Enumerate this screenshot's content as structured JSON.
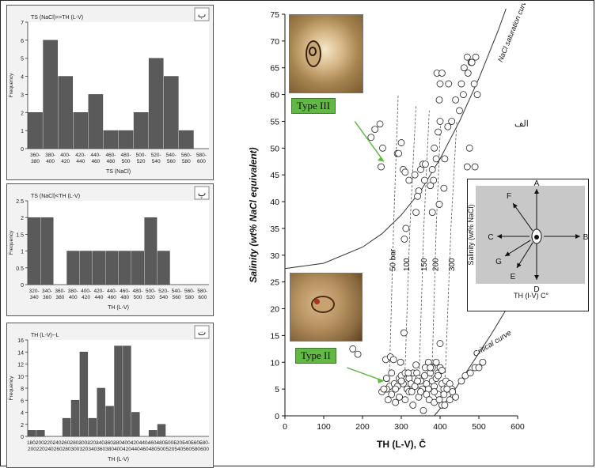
{
  "chart_data": [
    {
      "id": "hist-top",
      "type": "bar",
      "corner_label": "ب",
      "title": "TS (NaCl)>>TH (L-V)",
      "xlabel": "TS (NaCl)",
      "ylabel": "Frequency",
      "ylim": [
        0,
        7
      ],
      "yticks": [
        0,
        1,
        2,
        3,
        4,
        5,
        6,
        7
      ],
      "categories": [
        "360-380",
        "380-400",
        "400-420",
        "420-440",
        "440-460",
        "460-480",
        "480-500",
        "500-520",
        "520-540",
        "540-560",
        "560-580",
        "580-600"
      ],
      "values": [
        2,
        6,
        4,
        2,
        3,
        1,
        1,
        2,
        5,
        4,
        1,
        0
      ]
    },
    {
      "id": "hist-mid",
      "type": "bar",
      "corner_label": "پ",
      "title": "TS (NaCl)<TH (L-V)",
      "xlabel": "TH (L-V)",
      "ylabel": "Frequency",
      "ylim": [
        0,
        2.5
      ],
      "yticks": [
        0,
        0.5,
        1,
        1.5,
        2,
        2.5
      ],
      "categories": [
        "320-340",
        "340-360",
        "360-380",
        "380-400",
        "400-420",
        "420-440",
        "440-460",
        "460-480",
        "480-500",
        "500-520",
        "520-540",
        "540-560",
        "560-580",
        "580-600"
      ],
      "values": [
        2,
        2,
        0,
        1,
        1,
        1,
        1,
        1,
        1,
        2,
        1,
        0,
        0,
        0
      ]
    },
    {
      "id": "hist-bot",
      "type": "bar",
      "corner_label": "ت",
      "title": "TH (L-V)--L",
      "xlabel": "TH (L-V)",
      "ylabel": "Frequency",
      "ylim": [
        0,
        16
      ],
      "yticks": [
        0,
        2,
        4,
        6,
        8,
        10,
        12,
        14,
        16
      ],
      "categories": [
        "180-200",
        "200-220",
        "220-240",
        "240-260",
        "260-280",
        "280-300",
        "300-320",
        "320-340",
        "340-360",
        "360-380",
        "380-400",
        "400-420",
        "420-440",
        "440-460",
        "460-480",
        "480-500",
        "500-520",
        "520-540",
        "540-560",
        "560-580",
        "580-600"
      ],
      "values": [
        1,
        1,
        0,
        0,
        3,
        6,
        14,
        3,
        8,
        5,
        15,
        15,
        4,
        0,
        1,
        2,
        0,
        0,
        0,
        0,
        0
      ]
    },
    {
      "id": "scatter-main",
      "type": "scatter",
      "corner_label": "الف",
      "xlabel": "TH (L-V), Č",
      "ylabel": "Salinity (wt% NaCl equivalent)",
      "xlim": [
        0,
        600
      ],
      "ylim": [
        0,
        75
      ],
      "xticks": [
        0,
        100,
        200,
        300,
        400,
        500,
        600
      ],
      "yticks": [
        0,
        5,
        10,
        15,
        20,
        25,
        30,
        35,
        40,
        45,
        50,
        55,
        60,
        65,
        70,
        75
      ],
      "curve_labels": {
        "saturation": "NaCl saturation curve",
        "critical": "Critical curve"
      },
      "pressure_labels": [
        "50 bar",
        "100",
        "150",
        "200",
        "300"
      ],
      "type_labels": {
        "type3": "Type III",
        "type2": "Type II"
      },
      "saturation_curve": [
        [
          0,
          27.5
        ],
        [
          100,
          28.5
        ],
        [
          200,
          31.5
        ],
        [
          250,
          34
        ],
        [
          300,
          37.5
        ],
        [
          350,
          42
        ],
        [
          400,
          48
        ],
        [
          450,
          55
        ],
        [
          500,
          63
        ],
        [
          550,
          72
        ],
        [
          570,
          76
        ]
      ],
      "critical_curve": [
        [
          385,
          0
        ],
        [
          430,
          4
        ],
        [
          480,
          9.5
        ],
        [
          530,
          15
        ],
        [
          580,
          21
        ],
        [
          610,
          24.5
        ]
      ],
      "isobars": [
        [
          [
            268,
            4
          ],
          [
            280,
            35
          ],
          [
            292,
            60
          ]
        ],
        [
          [
            308,
            5
          ],
          [
            322,
            35
          ],
          [
            338,
            58
          ]
        ],
        [
          [
            345,
            5
          ],
          [
            358,
            35
          ],
          [
            372,
            57
          ]
        ],
        [
          [
            378,
            5
          ],
          [
            390,
            35
          ],
          [
            402,
            56
          ]
        ],
        [
          [
            412,
            5
          ],
          [
            428,
            35
          ],
          [
            443,
            55
          ]
        ]
      ],
      "points": [
        [
          222,
          52
        ],
        [
          232,
          53.5
        ],
        [
          245,
          54.5
        ],
        [
          252,
          50
        ],
        [
          248,
          46.5
        ],
        [
          290,
          49
        ],
        [
          293,
          49
        ],
        [
          300,
          51
        ],
        [
          305,
          46
        ],
        [
          310,
          45.5
        ],
        [
          320,
          44
        ],
        [
          335,
          45
        ],
        [
          345,
          42
        ],
        [
          350,
          46
        ],
        [
          356,
          47
        ],
        [
          362,
          47
        ],
        [
          308,
          33
        ],
        [
          312,
          35
        ],
        [
          338,
          38
        ],
        [
          342,
          41
        ],
        [
          360,
          44
        ],
        [
          375,
          43
        ],
        [
          380,
          46
        ],
        [
          383,
          44
        ],
        [
          385,
          50
        ],
        [
          390,
          48
        ],
        [
          395,
          53
        ],
        [
          400,
          55
        ],
        [
          398,
          59
        ],
        [
          410,
          42.5
        ],
        [
          412,
          48
        ],
        [
          420,
          54
        ],
        [
          422,
          62
        ],
        [
          430,
          55
        ],
        [
          440,
          59
        ],
        [
          450,
          57
        ],
        [
          455,
          62
        ],
        [
          460,
          60
        ],
        [
          462,
          65
        ],
        [
          470,
          67
        ],
        [
          472,
          64
        ],
        [
          480,
          66
        ],
        [
          482,
          66
        ],
        [
          488,
          62
        ],
        [
          492,
          67
        ],
        [
          496,
          60
        ],
        [
          476,
          50
        ],
        [
          470,
          46.5
        ],
        [
          490,
          46.5
        ],
        [
          398,
          39.5
        ],
        [
          380,
          38
        ],
        [
          400,
          62
        ],
        [
          392,
          64
        ],
        [
          405,
          64
        ],
        [
          175,
          12.5
        ],
        [
          188,
          11.5
        ],
        [
          260,
          10.5
        ],
        [
          272,
          11
        ],
        [
          280,
          10.5
        ],
        [
          262,
          7
        ],
        [
          270,
          5.5
        ],
        [
          275,
          8
        ],
        [
          282,
          6
        ],
        [
          290,
          5.5
        ],
        [
          295,
          7
        ],
        [
          300,
          7.5
        ],
        [
          305,
          6
        ],
        [
          310,
          8
        ],
        [
          315,
          5
        ],
        [
          320,
          7
        ],
        [
          325,
          6
        ],
        [
          330,
          8
        ],
        [
          335,
          5.5
        ],
        [
          340,
          8
        ],
        [
          345,
          7
        ],
        [
          350,
          6.5
        ],
        [
          355,
          5
        ],
        [
          360,
          7.5
        ],
        [
          365,
          6
        ],
        [
          370,
          5
        ],
        [
          375,
          8
        ],
        [
          380,
          6.5
        ],
        [
          385,
          5.5
        ],
        [
          390,
          7
        ],
        [
          395,
          8
        ],
        [
          400,
          9
        ],
        [
          405,
          6
        ],
        [
          410,
          5
        ],
        [
          415,
          6.5
        ],
        [
          420,
          5
        ],
        [
          425,
          6
        ],
        [
          430,
          5
        ],
        [
          266,
          3
        ],
        [
          285,
          2.5
        ],
        [
          295,
          3.5
        ],
        [
          310,
          3
        ],
        [
          320,
          4.5
        ],
        [
          330,
          2
        ],
        [
          345,
          3.5
        ],
        [
          357,
          1
        ],
        [
          365,
          4
        ],
        [
          372,
          3
        ],
        [
          385,
          2.5
        ],
        [
          395,
          4
        ],
        [
          405,
          2
        ],
        [
          412,
          2
        ],
        [
          425,
          3
        ],
        [
          440,
          3.5
        ],
        [
          455,
          6.5
        ],
        [
          465,
          7.5
        ],
        [
          478,
          8
        ],
        [
          490,
          9
        ],
        [
          500,
          9
        ],
        [
          510,
          10
        ],
        [
          400,
          13.5
        ],
        [
          390,
          10
        ],
        [
          380,
          9
        ],
        [
          405,
          8.5
        ],
        [
          395,
          7.5
        ],
        [
          307,
          15.5
        ],
        [
          298,
          10
        ],
        [
          338,
          9.5
        ],
        [
          318,
          8
        ],
        [
          262,
          5
        ],
        [
          250,
          4.5
        ],
        [
          255,
          5
        ],
        [
          275,
          4
        ],
        [
          285,
          5
        ],
        [
          300,
          6.5
        ],
        [
          327,
          4.5
        ],
        [
          342,
          6.5
        ],
        [
          350,
          4.5
        ],
        [
          362,
          9
        ],
        [
          370,
          10
        ],
        [
          375,
          9
        ],
        [
          385,
          4.5
        ],
        [
          398,
          3
        ],
        [
          410,
          4
        ],
        [
          418,
          5
        ],
        [
          432,
          4.5
        ]
      ]
    }
  ],
  "inset": {
    "directions": [
      "A",
      "B",
      "C",
      "D",
      "E",
      "F",
      "G"
    ],
    "ylabel": "Salinity (wt% NaCl)",
    "xlabel": "TH (l-V) C°"
  }
}
